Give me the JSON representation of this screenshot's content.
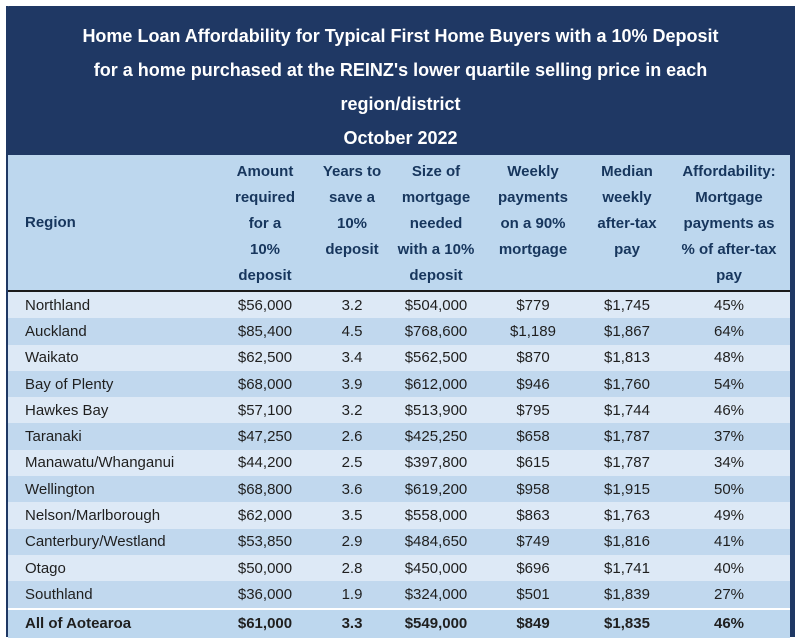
{
  "title": {
    "line1": "Home Loan Affordability for Typical First Home Buyers with a 10% Deposit",
    "line2": "for a home purchased at the REINZ's lower quartile selling price in each",
    "line3": "region/district",
    "line4": "October 2022"
  },
  "table": {
    "headers": {
      "region": "Region",
      "amount": [
        "Amount",
        "required",
        "for a",
        "10%",
        "deposit"
      ],
      "years": [
        "Years to",
        "save a",
        "10%",
        "deposit"
      ],
      "size": [
        "Size of",
        "mortgage",
        "needed",
        "with a 10%",
        "deposit"
      ],
      "weekly": [
        "Weekly",
        "payments",
        "on a 90%",
        "mortgage"
      ],
      "median": [
        "Median",
        "weekly",
        "after-tax",
        "pay"
      ],
      "affordability": [
        "Affordability:",
        "Mortgage",
        "payments as",
        "% of after-tax",
        "pay"
      ]
    },
    "rows": [
      {
        "cells": [
          "Northland",
          "$56,000",
          "3.2",
          "$504,000",
          "$779",
          "$1,745",
          "45%"
        ]
      },
      {
        "cells": [
          "Auckland",
          "$85,400",
          "4.5",
          "$768,600",
          "$1,189",
          "$1,867",
          "64%"
        ]
      },
      {
        "cells": [
          "Waikato",
          "$62,500",
          "3.4",
          "$562,500",
          "$870",
          "$1,813",
          "48%"
        ]
      },
      {
        "cells": [
          "Bay of Plenty",
          "$68,000",
          "3.9",
          "$612,000",
          "$946",
          "$1,760",
          "54%"
        ]
      },
      {
        "cells": [
          "Hawkes Bay",
          "$57,100",
          "3.2",
          "$513,900",
          "$795",
          "$1,744",
          "46%"
        ]
      },
      {
        "cells": [
          "Taranaki",
          "$47,250",
          "2.6",
          "$425,250",
          "$658",
          "$1,787",
          "37%"
        ]
      },
      {
        "cells": [
          "Manawatu/Whanganui",
          "$44,200",
          "2.5",
          "$397,800",
          "$615",
          "$1,787",
          "34%"
        ]
      },
      {
        "cells": [
          "Wellington",
          "$68,800",
          "3.6",
          "$619,200",
          "$958",
          "$1,915",
          "50%"
        ]
      },
      {
        "cells": [
          "Nelson/Marlborough",
          "$62,000",
          "3.5",
          "$558,000",
          "$863",
          "$1,763",
          "49%"
        ]
      },
      {
        "cells": [
          "Canterbury/Westland",
          "$53,850",
          "2.9",
          "$484,650",
          "$749",
          "$1,816",
          "41%"
        ]
      },
      {
        "cells": [
          "Otago",
          "$50,000",
          "2.8",
          "$450,000",
          "$696",
          "$1,741",
          "40%"
        ]
      },
      {
        "cells": [
          "Southland",
          "$36,000",
          "1.9",
          "$324,000",
          "$501",
          "$1,839",
          "27%"
        ]
      }
    ],
    "total_row": {
      "cells": [
        "All of Aotearoa",
        "$61,000",
        "3.3",
        "$549,000",
        "$849",
        "$1,835",
        "46%"
      ]
    }
  },
  "colors": {
    "navy": "#1F3864",
    "header_band": "#BDD7EE",
    "row_light": "#DDE9F6",
    "row_medium": "#C1D8EE",
    "total_row": "#BDD7EE",
    "title_text": "#FFFFFF",
    "header_text": "#17365D",
    "body_text": "#1F1F1F",
    "rule": "#1B1B1B"
  },
  "chart_data": {
    "type": "table",
    "title": "Home Loan Affordability for Typical First Home Buyers with a 10% Deposit for a home purchased at the REINZ's lower quartile selling price in each region/district",
    "subtitle": "October 2022",
    "columns": [
      "Region",
      "Amount required for a 10% deposit",
      "Years to save a 10% deposit",
      "Size of mortgage needed with a 10% deposit",
      "Weekly payments on a 90% mortgage",
      "Median weekly after-tax pay",
      "Affordability: Mortgage payments as % of after-tax pay"
    ],
    "rows": [
      [
        "Northland",
        56000,
        3.2,
        504000,
        779,
        1745,
        "45%"
      ],
      [
        "Auckland",
        85400,
        4.5,
        768600,
        1189,
        1867,
        "64%"
      ],
      [
        "Waikato",
        62500,
        3.4,
        562500,
        870,
        1813,
        "48%"
      ],
      [
        "Bay of Plenty",
        68000,
        3.9,
        612000,
        946,
        1760,
        "54%"
      ],
      [
        "Hawkes Bay",
        57100,
        3.2,
        513900,
        795,
        1744,
        "46%"
      ],
      [
        "Taranaki",
        47250,
        2.6,
        425250,
        658,
        1787,
        "37%"
      ],
      [
        "Manawatu/Whanganui",
        44200,
        2.5,
        397800,
        615,
        1787,
        "34%"
      ],
      [
        "Wellington",
        68800,
        3.6,
        619200,
        958,
        1915,
        "50%"
      ],
      [
        "Nelson/Marlborough",
        62000,
        3.5,
        558000,
        863,
        1763,
        "49%"
      ],
      [
        "Canterbury/Westland",
        53850,
        2.9,
        484650,
        749,
        1816,
        "41%"
      ],
      [
        "Otago",
        50000,
        2.8,
        450000,
        696,
        1741,
        "40%"
      ],
      [
        "Southland",
        36000,
        1.9,
        324000,
        501,
        1839,
        "27%"
      ],
      [
        "All of Aotearoa",
        61000,
        3.3,
        549000,
        849,
        1835,
        "46%"
      ]
    ]
  }
}
